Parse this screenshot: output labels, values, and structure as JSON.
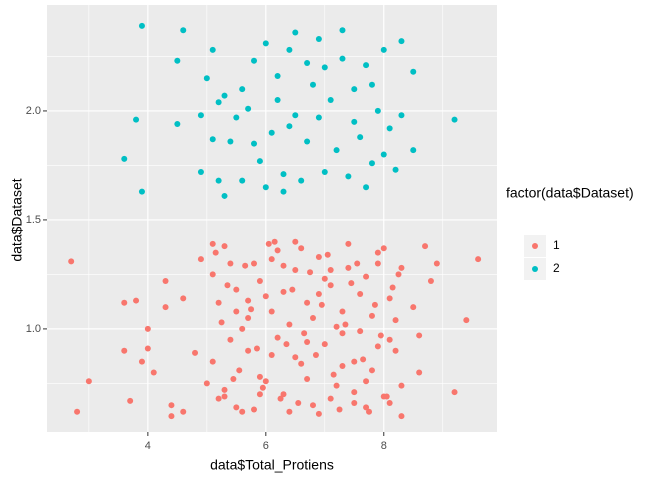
{
  "chart_data": {
    "type": "scatter",
    "xlabel": "data$Total_Protiens",
    "ylabel": "data$Dataset",
    "legend_title": "factor(data$Dataset)",
    "legend_position": "right",
    "xlim": [
      2.29,
      9.92
    ],
    "ylim": [
      0.527,
      2.486
    ],
    "xticks": [
      4,
      6,
      8
    ],
    "yticks": [
      {
        "value": 1,
        "label": "1.0"
      },
      {
        "value": 1.5,
        "label": "1.5"
      },
      {
        "value": 2,
        "label": "2.0"
      }
    ],
    "grid": true,
    "series": [
      {
        "name": "1",
        "color": "#F8766D",
        "x": [
          2.7,
          2.8,
          3.0,
          3.6,
          3.6,
          3.7,
          3.8,
          3.9,
          4.0,
          4.0,
          4.1,
          4.3,
          4.3,
          4.4,
          4.4,
          4.6,
          4.6,
          4.8,
          4.9,
          5.0,
          9.2,
          9.4,
          9.6,
          8.9,
          8.8,
          8.7,
          8.6,
          8.5,
          8.6,
          5.1,
          5.2,
          5.3,
          5.4,
          5.5,
          5.6,
          5.7,
          5.8,
          5.9,
          6.0,
          6.1,
          6.2,
          6.3,
          6.4,
          6.5,
          6.6,
          6.7,
          6.8,
          6.9,
          7.0,
          7.1,
          7.2,
          7.3,
          7.4,
          7.5,
          7.6,
          7.7,
          7.8,
          7.9,
          8.0,
          8.1,
          8.2,
          8.3,
          5.1,
          5.2,
          5.3,
          5.4,
          5.5,
          5.6,
          5.7,
          5.8,
          5.9,
          6.0,
          6.1,
          6.2,
          6.3,
          6.4,
          6.5,
          6.6,
          6.7,
          6.8,
          6.9,
          7.0,
          7.1,
          7.2,
          7.3,
          7.4,
          7.5,
          7.6,
          7.7,
          7.8,
          7.9,
          8.0,
          8.1,
          8.2,
          8.3,
          5.15,
          5.35,
          5.55,
          5.75,
          5.95,
          6.15,
          6.35,
          6.55,
          6.75,
          6.95,
          7.15,
          7.35,
          7.55,
          7.75,
          7.95,
          8.15,
          5.25,
          5.45,
          5.65,
          5.85,
          6.05,
          6.25,
          6.45,
          6.65,
          6.85,
          7.05,
          7.25,
          7.45,
          7.65,
          7.85,
          8.05,
          8.25,
          5.1,
          5.5,
          5.9,
          6.3,
          6.7,
          7.1,
          7.5,
          7.9,
          8.3,
          5.3,
          5.7,
          6.1,
          6.5,
          6.9,
          7.3,
          7.7,
          8.1
        ],
        "values": [
          1.31,
          0.62,
          0.76,
          0.9,
          1.12,
          0.67,
          1.13,
          0.85,
          1.0,
          0.91,
          0.8,
          1.1,
          1.22,
          0.65,
          0.6,
          0.62,
          1.14,
          0.89,
          1.32,
          0.75,
          0.71,
          1.04,
          1.32,
          1.3,
          1.22,
          1.38,
          0.97,
          1.1,
          0.8,
          1.25,
          0.68,
          1.38,
          0.95,
          1.18,
          0.62,
          1.05,
          1.3,
          0.78,
          1.15,
          0.88,
          1.36,
          0.7,
          1.02,
          1.27,
          0.84,
          1.12,
          0.65,
          1.33,
          0.93,
          1.2,
          0.74,
          1.08,
          1.39,
          0.66,
          0.99,
          1.24,
          0.81,
          1.35,
          0.69,
          1.14,
          0.9,
          1.28,
          0.85,
          1.12,
          0.72,
          1.3,
          0.64,
          1.0,
          0.9,
          0.63,
          1.22,
          0.76,
          1.32,
          0.96,
          1.17,
          0.62,
          0.87,
          1.37,
          0.77,
          1.05,
          0.61,
          1.23,
          0.68,
          1.01,
          0.83,
          1.28,
          0.71,
          1.16,
          0.64,
          1.06,
          0.92,
          1.37,
          0.66,
          1.04,
          0.74,
          1.35,
          1.2,
          0.81,
          1.09,
          0.73,
          1.4,
          0.93,
          0.66,
          1.26,
          1.11,
          0.79,
          1.02,
          1.3,
          0.62,
          0.97,
          1.19,
          1.03,
          0.77,
          1.29,
          0.91,
          1.39,
          0.68,
          1.18,
          0.98,
          0.88,
          1.34,
          0.63,
          1.21,
          0.86,
          1.11,
          0.69,
          1.25,
          1.39,
          1.08,
          0.7,
          1.29,
          0.94,
          1.27,
          0.85,
          1.3,
          0.6,
          0.69,
          1.13,
          1.08,
          1.4,
          1.16,
          0.98,
          0.76,
          0.95
        ]
      },
      {
        "name": "2",
        "color": "#00BFC4",
        "x": [
          3.9,
          4.6,
          4.5,
          5.1,
          3.8,
          3.6,
          3.9,
          4.5,
          4.9,
          4.9,
          5.0,
          5.3,
          5.8,
          6.0,
          6.4,
          6.9,
          7.3,
          7.7,
          8.0,
          8.3,
          8.5,
          9.2,
          5.2,
          5.3,
          5.6,
          6.0,
          6.3,
          6.6,
          7.0,
          7.4,
          7.7,
          8.2,
          8.5,
          8.1,
          7.9,
          7.5,
          7.1,
          6.8,
          6.5,
          6.1,
          5.8,
          5.5,
          5.2,
          5.6,
          6.2,
          6.7,
          7.2,
          7.6,
          7.8,
          8.0,
          7.3,
          6.7,
          6.2,
          5.4,
          5.9,
          6.4,
          6.9,
          7.5,
          8.3,
          5.7,
          6.5,
          7.0,
          6.3,
          7.8,
          5.1
        ],
        "values": [
          2.39,
          2.37,
          2.23,
          2.28,
          1.96,
          1.78,
          1.63,
          1.94,
          1.72,
          1.98,
          2.15,
          2.07,
          2.23,
          2.31,
          2.28,
          2.33,
          2.37,
          2.21,
          2.28,
          2.32,
          2.18,
          1.96,
          1.68,
          1.61,
          1.68,
          1.65,
          1.71,
          1.68,
          1.72,
          1.7,
          1.65,
          1.73,
          1.82,
          1.92,
          2.0,
          1.95,
          2.05,
          2.12,
          1.98,
          1.9,
          1.85,
          1.97,
          2.04,
          2.1,
          2.05,
          1.86,
          1.82,
          1.88,
          2.12,
          1.8,
          2.24,
          2.22,
          2.16,
          1.86,
          1.77,
          1.93,
          1.97,
          2.1,
          1.98,
          2.01,
          2.36,
          2.2,
          1.63,
          1.76,
          1.87
        ]
      }
    ]
  }
}
